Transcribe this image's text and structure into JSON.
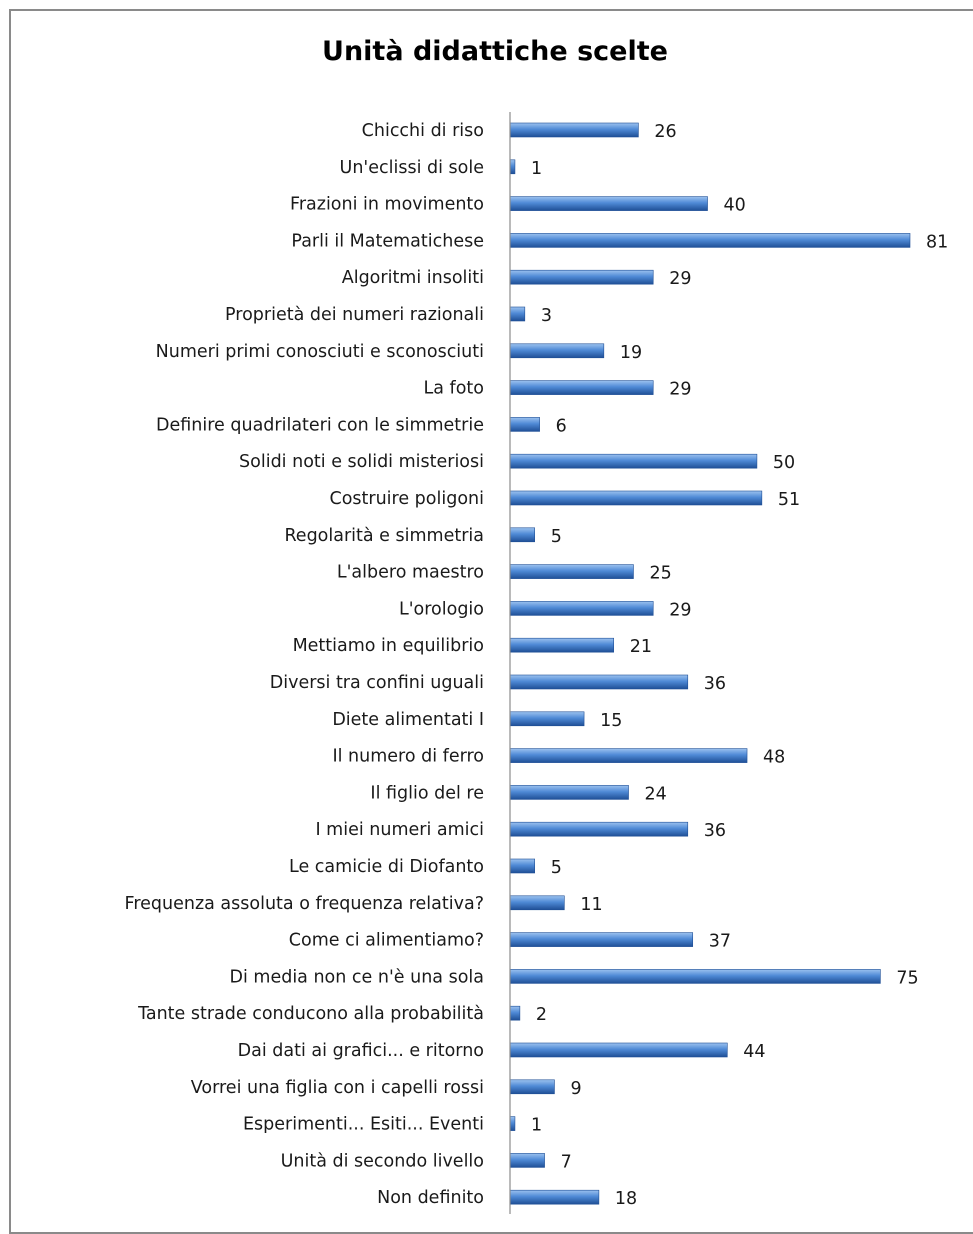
{
  "chart_data": {
    "type": "bar",
    "orientation": "horizontal",
    "title": "Unità didattiche scelte",
    "xlabel": "",
    "ylabel": "",
    "xlim": [
      0,
      81
    ],
    "grid": false,
    "legend": "none",
    "colors": {
      "bar_light": "#9cc2ef",
      "bar_mid": "#4f8ad6",
      "bar_dark": "#1f4f96",
      "axis": "#8c8c8c",
      "frame": "#8a8a8a"
    },
    "categories": [
      "Chicchi di riso",
      "Un'eclissi di sole",
      "Frazioni in movimento",
      "Parli il Matematichese",
      "Algoritmi insoliti",
      "Proprietà dei numeri razionali",
      "Numeri primi conosciuti e sconosciuti",
      "La foto",
      "Definire quadrilateri con le simmetrie",
      "Solidi noti e solidi misteriosi",
      "Costruire poligoni",
      "Regolarità e simmetria",
      "L'albero maestro",
      "L'orologio",
      "Mettiamo in equilibrio",
      "Diversi tra confini uguali",
      "Diete alimentati I",
      "Il numero di ferro",
      "Il figlio del re",
      "I miei numeri amici",
      "Le camicie di Diofanto",
      "Frequenza assoluta o frequenza relativa?",
      "Come ci alimentiamo?",
      "Di media non ce n'è una sola",
      "Tante strade conducono alla probabilità",
      "Dai dati ai grafici... e ritorno",
      "Vorrei una figlia con i capelli rossi",
      "Esperimenti... Esiti... Eventi",
      "Unità di secondo livello",
      "Non definito"
    ],
    "values": [
      26,
      1,
      40,
      81,
      29,
      3,
      19,
      29,
      6,
      50,
      51,
      5,
      25,
      29,
      21,
      36,
      15,
      48,
      24,
      36,
      5,
      11,
      37,
      75,
      2,
      44,
      9,
      1,
      7,
      18
    ]
  }
}
